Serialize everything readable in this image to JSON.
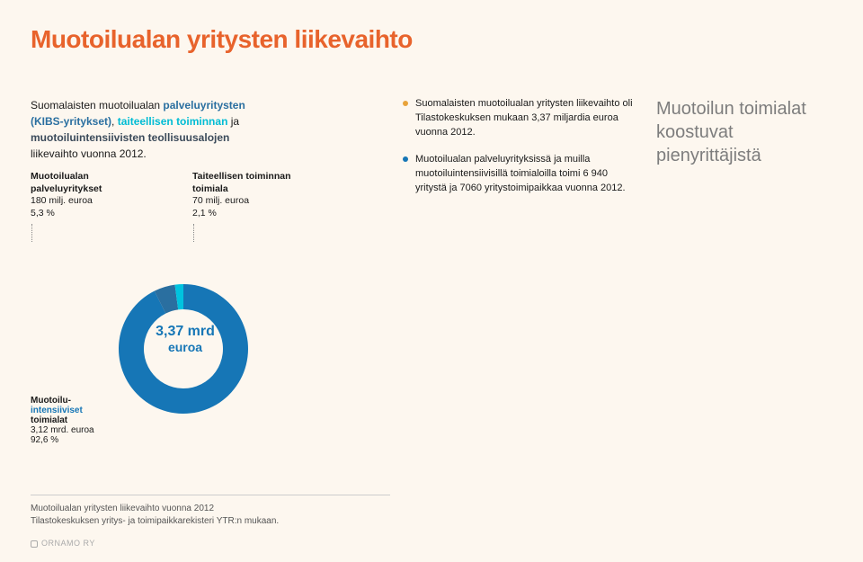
{
  "title": "Muotoilualan yritysten liikevaihto",
  "intro": {
    "part1": "Suomalaisten muotoilualan ",
    "kibs": "palveluyritysten (KIBS-yritykset)",
    "sep1": ", ",
    "art": "taiteellisen toiminnan",
    "sep2": " ja ",
    "ind": "muotoiluintensiivisten teollisuusalojen",
    "tail": " liikevaihto vuonna 2012."
  },
  "label1": {
    "h": "Muotoilualan palveluyritykset",
    "v1": "180 milj. euroa",
    "v2": "5,3 %"
  },
  "label2": {
    "h": "Taiteellisen toiminnan toimiala",
    "v1": "70 milj. euroa",
    "v2": "2,1 %"
  },
  "bullets": [
    {
      "color": "#e8a33a",
      "text": "Suomalaisten muotoilualan yritysten liikevaihto oli Tilastokeskuksen mukaan 3,37 miljardia euroa vuonna 2012."
    },
    {
      "color": "#1676b6",
      "text": "Muotoilualan palveluyrityksissä ja muilla muotoiluintensiivisillä toimialoilla toimi 6 940 yritystä ja 7060 yritystoimipaikkaa vuonna 2012."
    }
  ],
  "quote": "Muotoilun toimialat koostuvat pienyrittäjistä",
  "donut": {
    "type": "pie",
    "slices": [
      {
        "label": "Muotoiluintensiiviset toimialat",
        "pct": 92.6,
        "color": "#1676b6"
      },
      {
        "label": "Muotoilualan palveluyritykset",
        "pct": 5.3,
        "color": "#2a6fa0"
      },
      {
        "label": "Taiteellisen toiminnan toimiala",
        "pct": 2.1,
        "color": "#00c3df"
      }
    ],
    "inner_radius": 44,
    "outer_radius": 72,
    "rotation_deg": -90,
    "background": "#fdf7ef",
    "center_big": "3,37 mrd",
    "center_sm": "euroa"
  },
  "left_label": {
    "l1": "Muotoilu-",
    "l2": "intensiiviset",
    "l3": "toimialat",
    "v1": "3,12 mrd. euroa",
    "v2": "92,6 %"
  },
  "caption": {
    "l1": "Muotoilualan yritysten liikevaihto vuonna 2012",
    "l2": "Tilastokeskuksen yritys- ja toimipaikkarekisteri YTR:n mukaan."
  },
  "footer": "ORNAMO RY"
}
